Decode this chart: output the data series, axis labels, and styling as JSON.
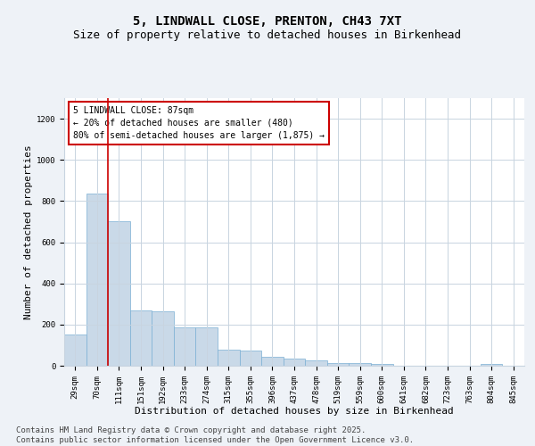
{
  "title": "5, LINDWALL CLOSE, PRENTON, CH43 7XT",
  "subtitle": "Size of property relative to detached houses in Birkenhead",
  "xlabel": "Distribution of detached houses by size in Birkenhead",
  "ylabel": "Number of detached properties",
  "categories": [
    "29sqm",
    "70sqm",
    "111sqm",
    "151sqm",
    "192sqm",
    "233sqm",
    "274sqm",
    "315sqm",
    "355sqm",
    "396sqm",
    "437sqm",
    "478sqm",
    "519sqm",
    "559sqm",
    "600sqm",
    "641sqm",
    "682sqm",
    "723sqm",
    "763sqm",
    "804sqm",
    "845sqm"
  ],
  "values": [
    150,
    835,
    700,
    270,
    265,
    185,
    185,
    80,
    75,
    45,
    35,
    25,
    15,
    12,
    8,
    0,
    0,
    0,
    0,
    8,
    0
  ],
  "bar_color": "#c9d9e8",
  "bar_edge_color": "#7bafd4",
  "vline_x_index": 1,
  "vline_color": "#cc0000",
  "annotation_line1": "5 LINDWALL CLOSE: 87sqm",
  "annotation_line2": "← 20% of detached houses are smaller (480)",
  "annotation_line3": "80% of semi-detached houses are larger (1,875) →",
  "annotation_box_color": "#ffffff",
  "annotation_box_edge_color": "#cc0000",
  "ylim": [
    0,
    1300
  ],
  "yticks": [
    0,
    200,
    400,
    600,
    800,
    1000,
    1200
  ],
  "footer": "Contains HM Land Registry data © Crown copyright and database right 2025.\nContains public sector information licensed under the Open Government Licence v3.0.",
  "bg_color": "#eef2f7",
  "plot_bg_color": "#ffffff",
  "grid_color": "#c8d4e0",
  "title_fontsize": 10,
  "subtitle_fontsize": 9,
  "tick_fontsize": 6.5,
  "label_fontsize": 8,
  "footer_fontsize": 6.5
}
